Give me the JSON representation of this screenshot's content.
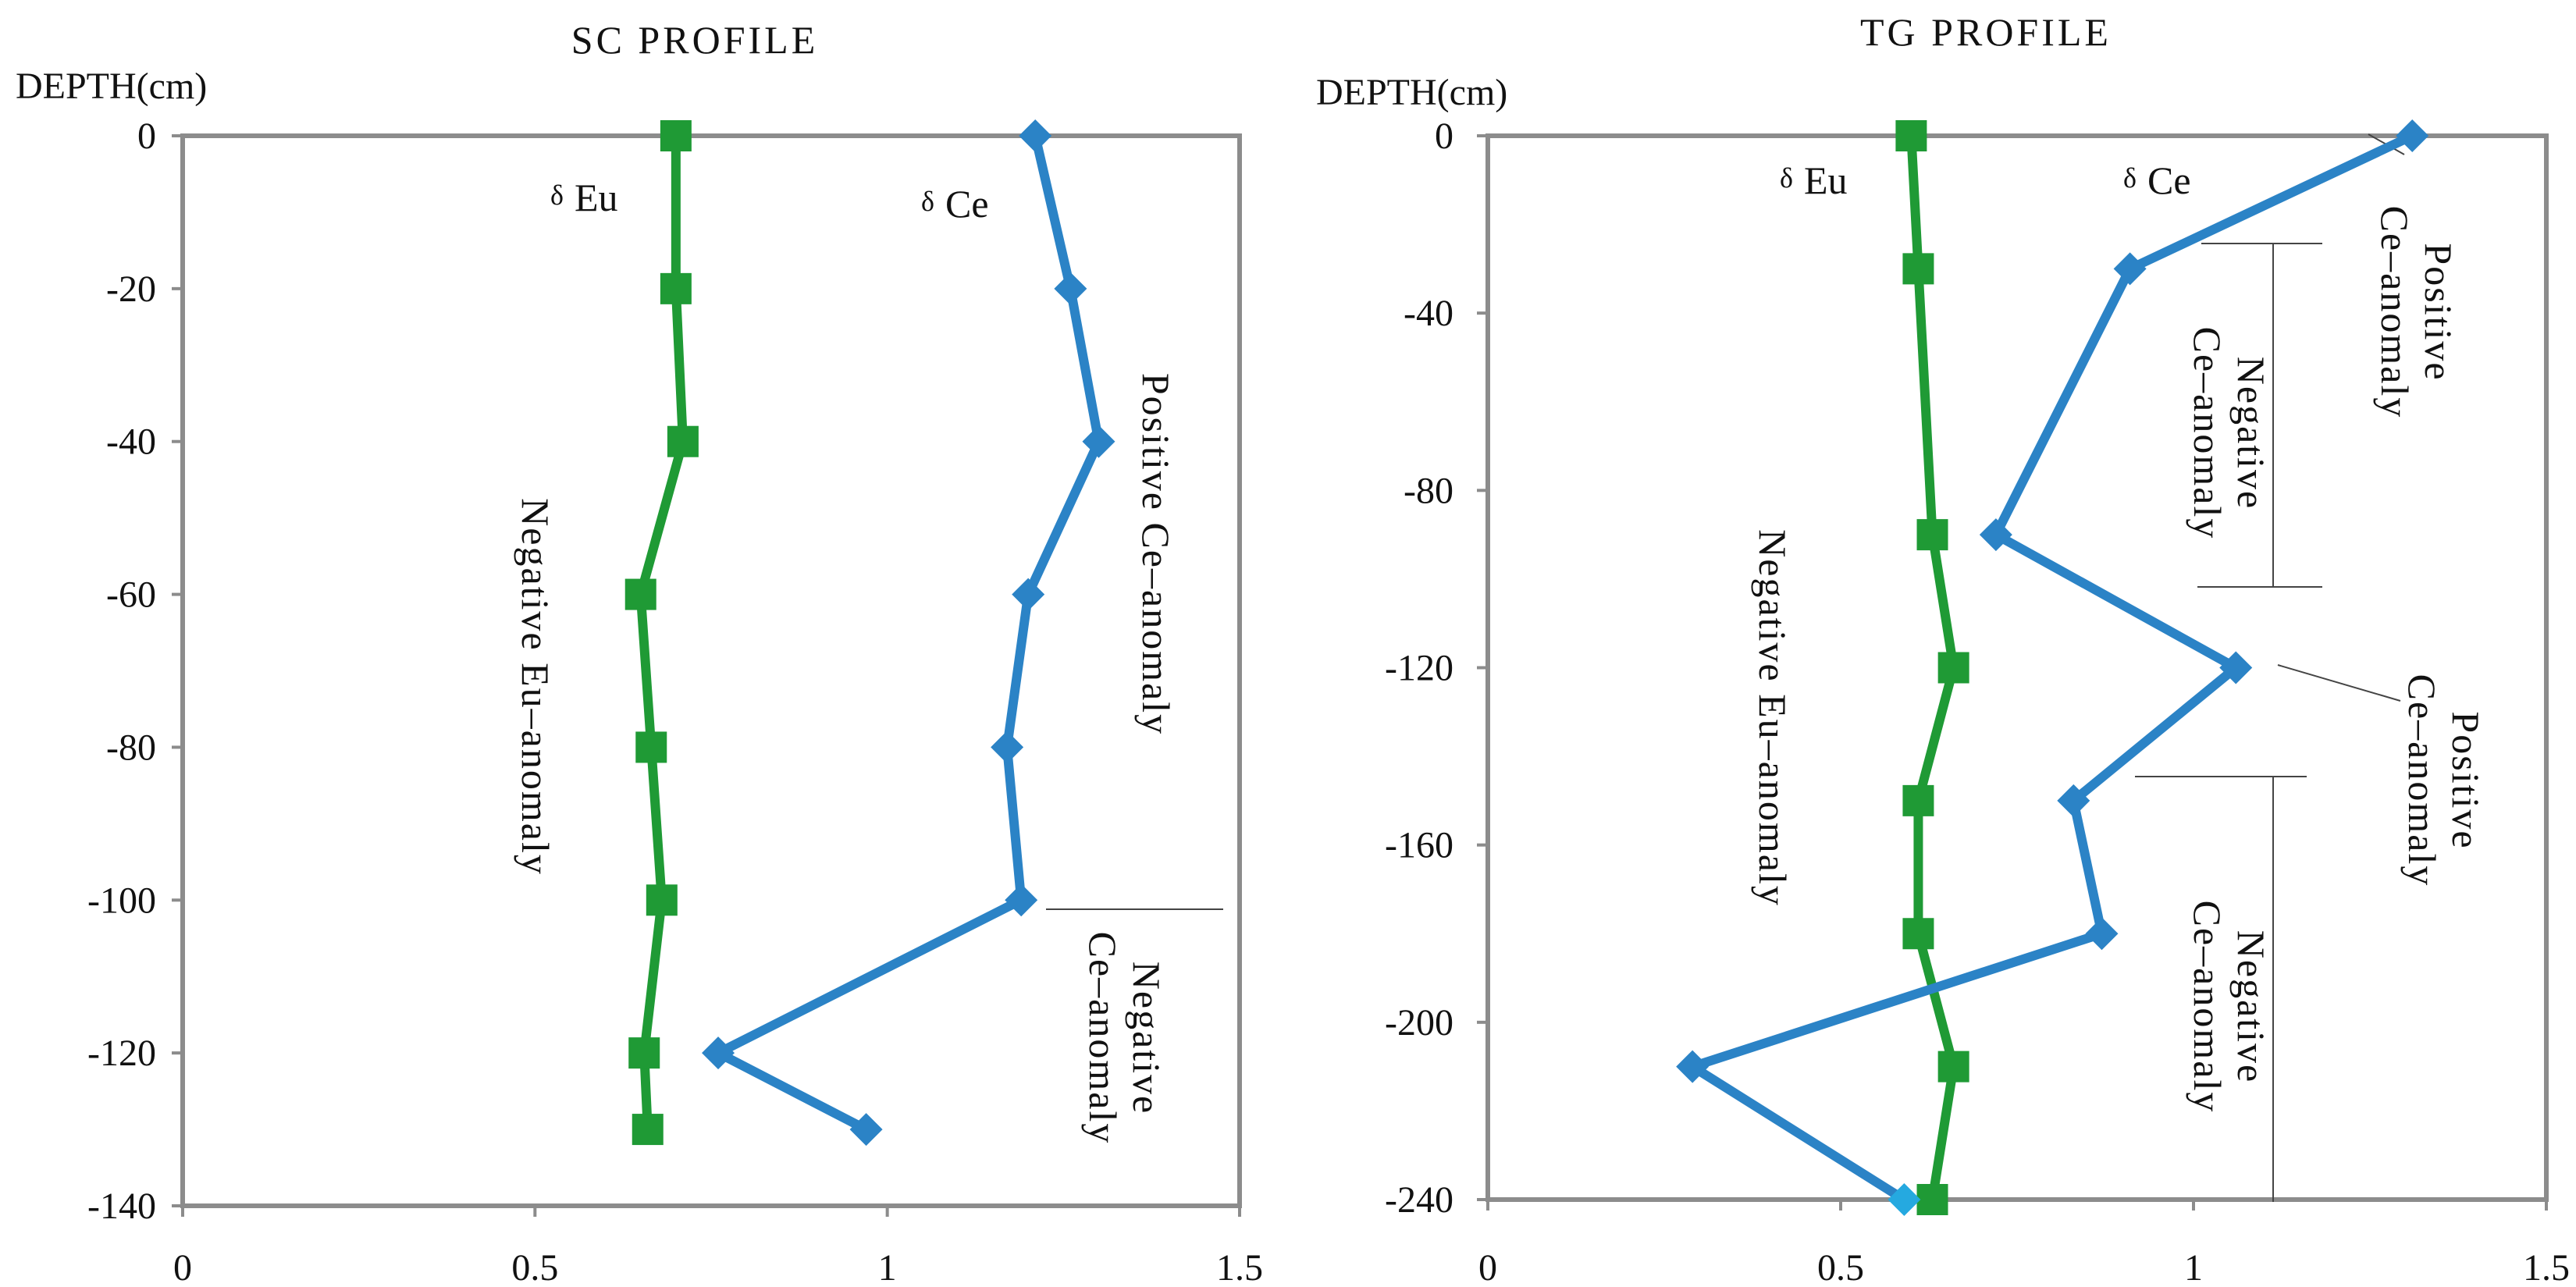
{
  "colors": {
    "ce": "#2b83c6",
    "eu": "#1f9a35",
    "frame": "#8c8c8c"
  },
  "chart_data": [
    {
      "type": "line",
      "title": "SC PROFILE",
      "ylabel": "DEPTH(cm)",
      "xlabel": "",
      "xlim": [
        0,
        1.5
      ],
      "ylim": [
        -140,
        0
      ],
      "xticks": [
        0,
        0.5,
        1,
        1.5
      ],
      "xtick_labels": [
        "0",
        "0.5",
        "1",
        "1.5"
      ],
      "yticks": [
        0,
        -20,
        -40,
        -60,
        -80,
        -100,
        -120,
        -140
      ],
      "ytick_labels": [
        "0",
        "-20",
        "-40",
        "-60",
        "-80",
        "-100",
        "-120",
        "-140"
      ],
      "series": [
        {
          "name": "δEu",
          "label_symbol": "δ",
          "label_text": "Eu",
          "color": "#1f9a35",
          "marker": "square",
          "points": [
            [
              0.7,
              0
            ],
            [
              0.7,
              -20
            ],
            [
              0.71,
              -40
            ],
            [
              0.65,
              -60
            ],
            [
              0.665,
              -80
            ],
            [
              0.68,
              -100
            ],
            [
              0.655,
              -120
            ],
            [
              0.66,
              -130
            ]
          ]
        },
        {
          "name": "δCe",
          "label_symbol": "δ",
          "label_text": "Ce",
          "color": "#2b83c6",
          "marker": "diamond",
          "points": [
            [
              1.21,
              0
            ],
            [
              1.26,
              -20
            ],
            [
              1.3,
              -40
            ],
            [
              1.2,
              -60
            ],
            [
              1.17,
              -80
            ],
            [
              1.19,
              -100
            ],
            [
              0.76,
              -120
            ],
            [
              0.97,
              -130
            ]
          ]
        }
      ],
      "annotations": [
        {
          "id": "sc-pos-ce",
          "lines": [
            "Positive Ce–anomaly"
          ]
        },
        {
          "id": "sc-neg-eu",
          "lines": [
            "Negative Eu–anomaly"
          ]
        },
        {
          "id": "sc-neg-ce",
          "lines": [
            "Negative",
            "Ce–anomaly"
          ]
        }
      ]
    },
    {
      "type": "line",
      "title": "TG PROFILE",
      "ylabel": "DEPTH(cm)",
      "xlabel": "",
      "xlim": [
        0,
        1.5
      ],
      "ylim": [
        -240,
        0
      ],
      "xticks": [
        0,
        0.5,
        1,
        1.5
      ],
      "xtick_labels": [
        "0",
        "0.5",
        "1",
        "1.5"
      ],
      "yticks": [
        0,
        -40,
        -80,
        -120,
        -160,
        -200,
        -240
      ],
      "ytick_labels": [
        "0",
        "-40",
        "-80",
        "-120",
        "-160",
        "-200",
        "-240"
      ],
      "series": [
        {
          "name": "δEu",
          "label_symbol": "δ",
          "label_text": "Eu",
          "color": "#1f9a35",
          "marker": "square",
          "points": [
            [
              0.6,
              0
            ],
            [
              0.61,
              -30
            ],
            [
              0.63,
              -90
            ],
            [
              0.66,
              -120
            ],
            [
              0.61,
              -150
            ],
            [
              0.61,
              -180
            ],
            [
              0.66,
              -210
            ],
            [
              0.63,
              -240
            ]
          ]
        },
        {
          "name": "δCe",
          "label_symbol": "δ",
          "label_text": "Ce",
          "color": "#2b83c6",
          "marker": "diamond",
          "points": [
            [
              1.31,
              0
            ],
            [
              0.91,
              -30
            ],
            [
              0.72,
              -90
            ],
            [
              1.06,
              -120
            ],
            [
              0.83,
              -150
            ],
            [
              0.87,
              -180
            ],
            [
              0.29,
              -210
            ],
            [
              0.59,
              -240
            ]
          ]
        }
      ],
      "annotations": [
        {
          "id": "tg-pos-ce-1",
          "lines": [
            "Positive",
            "Ce–anomaly"
          ]
        },
        {
          "id": "tg-neg-ce-1",
          "lines": [
            "Negative",
            "Ce–anomaly"
          ]
        },
        {
          "id": "tg-pos-ce-2",
          "lines": [
            "Positive",
            "Ce–anomaly"
          ]
        },
        {
          "id": "tg-neg-ce-2",
          "lines": [
            "Negative",
            "Ce–anomaly"
          ]
        },
        {
          "id": "tg-neg-eu",
          "lines": [
            "Negative Eu–anomaly"
          ]
        }
      ]
    }
  ]
}
